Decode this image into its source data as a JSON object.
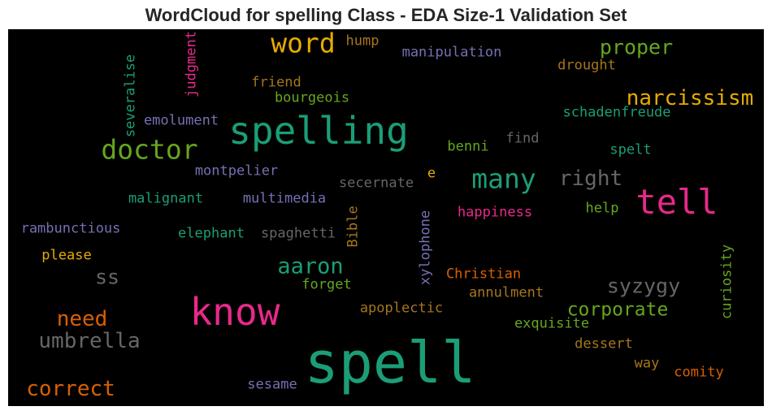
{
  "title": "WordCloud for spelling Class - EDA Size-1 Validation Set",
  "palette": {
    "teal": "#1b9e77",
    "orange": "#d95f02",
    "purple": "#7570b3",
    "pink": "#e7298a",
    "green": "#66a61e",
    "gold": "#e6ab02",
    "brown": "#a6761d",
    "gray": "#666666"
  },
  "words": [
    {
      "text": "spell",
      "color": "teal"
    },
    {
      "text": "spelling",
      "color": "teal"
    },
    {
      "text": "know",
      "color": "pink"
    },
    {
      "text": "tell",
      "color": "pink"
    },
    {
      "text": "word",
      "color": "gold"
    },
    {
      "text": "doctor",
      "color": "green"
    },
    {
      "text": "many",
      "color": "teal"
    },
    {
      "text": "narcissism",
      "color": "gold"
    },
    {
      "text": "proper",
      "color": "green"
    },
    {
      "text": "aaron",
      "color": "teal"
    },
    {
      "text": "right",
      "color": "gray"
    },
    {
      "text": "umbrella",
      "color": "gray"
    },
    {
      "text": "correct",
      "color": "orange"
    },
    {
      "text": "need",
      "color": "orange"
    },
    {
      "text": "corporate",
      "color": "green"
    },
    {
      "text": "syzygy",
      "color": "gray"
    },
    {
      "text": "ss",
      "color": "gray"
    },
    {
      "text": "hump",
      "color": "brown"
    },
    {
      "text": "manipulation",
      "color": "purple"
    },
    {
      "text": "drought",
      "color": "brown"
    },
    {
      "text": "friend",
      "color": "brown"
    },
    {
      "text": "bourgeois",
      "color": "green"
    },
    {
      "text": "schadenfreude",
      "color": "teal"
    },
    {
      "text": "emolument",
      "color": "purple"
    },
    {
      "text": "find",
      "color": "gray"
    },
    {
      "text": "benni",
      "color": "green"
    },
    {
      "text": "spelt",
      "color": "teal"
    },
    {
      "text": "montpelier",
      "color": "purple"
    },
    {
      "text": "e",
      "color": "gold"
    },
    {
      "text": "secernate",
      "color": "gray"
    },
    {
      "text": "malignant",
      "color": "teal"
    },
    {
      "text": "multimedia",
      "color": "purple"
    },
    {
      "text": "happiness",
      "color": "pink"
    },
    {
      "text": "help",
      "color": "green"
    },
    {
      "text": "rambunctious",
      "color": "purple"
    },
    {
      "text": "elephant",
      "color": "teal"
    },
    {
      "text": "spaghetti",
      "color": "gray"
    },
    {
      "text": "please",
      "color": "gold"
    },
    {
      "text": "forget",
      "color": "green"
    },
    {
      "text": "Christian",
      "color": "orange"
    },
    {
      "text": "annulment",
      "color": "brown"
    },
    {
      "text": "apoplectic",
      "color": "brown"
    },
    {
      "text": "exquisite",
      "color": "green"
    },
    {
      "text": "dessert",
      "color": "brown"
    },
    {
      "text": "way",
      "color": "brown"
    },
    {
      "text": "comity",
      "color": "orange"
    },
    {
      "text": "sesame",
      "color": "purple"
    },
    {
      "text": "severalise",
      "color": "teal"
    },
    {
      "text": "judgment",
      "color": "pink"
    },
    {
      "text": "Bible",
      "color": "brown"
    },
    {
      "text": "xylophone",
      "color": "purple"
    },
    {
      "text": "curiosity",
      "color": "green"
    }
  ]
}
